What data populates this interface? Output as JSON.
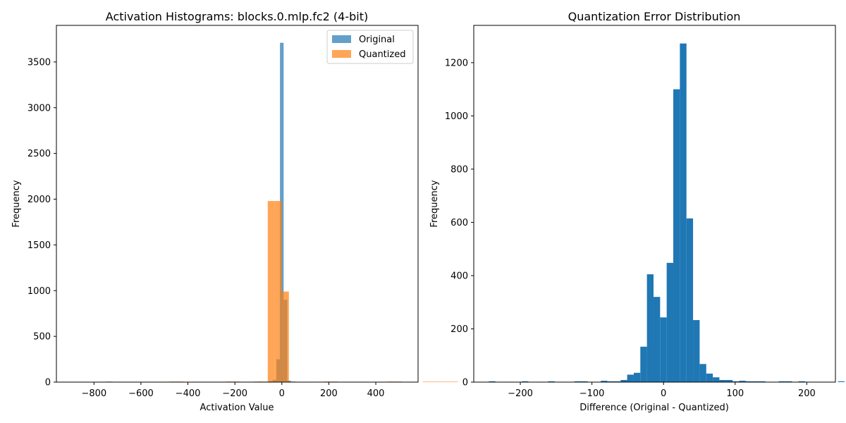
{
  "chart_data": [
    {
      "type": "bar",
      "title": "Activation Histograms: blocks.0.mlp.fc2 (4-bit)",
      "xlabel": "Activation Value",
      "ylabel": "Frequency",
      "xlim": [
        -960,
        580
      ],
      "ylim": [
        0,
        3900
      ],
      "xticks": [
        -800,
        -600,
        -400,
        -200,
        0,
        200,
        400
      ],
      "xtick_labels": [
        "−800",
        "−600",
        "−400",
        "−200",
        "0",
        "200",
        "400"
      ],
      "yticks": [
        0,
        500,
        1000,
        1500,
        2000,
        2500,
        3000,
        3500
      ],
      "ytick_labels": [
        "0",
        "500",
        "1000",
        "1500",
        "2000",
        "2500",
        "3000",
        "3500"
      ],
      "grid": false,
      "legend": "upper-right",
      "series": [
        {
          "name": "Original",
          "color": "#1f77b4",
          "opacity": 0.7,
          "bin_start": -256,
          "bin_width": 15.5,
          "counts": [
            2,
            0,
            0,
            0,
            3,
            0,
            4,
            2,
            4,
            3,
            5,
            4,
            5,
            10,
            25,
            250,
            3710,
            900,
            15,
            5,
            3,
            2,
            2,
            0,
            0,
            3,
            4,
            2,
            2,
            3,
            4,
            2,
            0,
            2,
            3,
            0,
            0,
            0
          ]
        },
        {
          "name": "Quantized",
          "color": "#ff7f0e",
          "opacity": 0.7,
          "bin_start": -750,
          "bin_width": 30,
          "counts": [
            6,
            0,
            0,
            0,
            0,
            0,
            0,
            0,
            0,
            6,
            6,
            0,
            0,
            0,
            0,
            0,
            0,
            6,
            6,
            0,
            0,
            6,
            6,
            1980,
            1980,
            990,
            6,
            0,
            0,
            0,
            0,
            6,
            6,
            0,
            0,
            0,
            0,
            0,
            0,
            0,
            6,
            6,
            0,
            0,
            0,
            6,
            6,
            6,
            6,
            6
          ]
        }
      ]
    },
    {
      "type": "bar",
      "title": "Quantization Error Distribution",
      "xlabel": "Difference (Original - Quantized)",
      "ylabel": "Frequency",
      "xlim": [
        -265,
        240
      ],
      "ylim": [
        0,
        1340
      ],
      "xticks": [
        -200,
        -100,
        0,
        100,
        200
      ],
      "xtick_labels": [
        "−200",
        "−100",
        "0",
        "100",
        "200"
      ],
      "yticks": [
        0,
        200,
        400,
        600,
        800,
        1000,
        1200
      ],
      "ytick_labels": [
        "0",
        "200",
        "400",
        "600",
        "800",
        "1000",
        "1200"
      ],
      "grid": false,
      "series": [
        {
          "color": "#1f77b4",
          "opacity": 1,
          "bin_start": -244,
          "bin_width": 9.2,
          "counts": [
            3,
            0,
            0,
            0,
            0,
            3,
            0,
            0,
            0,
            3,
            0,
            0,
            0,
            3,
            3,
            0,
            0,
            5,
            3,
            3,
            8,
            28,
            35,
            133,
            405,
            320,
            243,
            448,
            1100,
            1272,
            615,
            233,
            68,
            32,
            18,
            8,
            8,
            3,
            5,
            3,
            3,
            3,
            0,
            0,
            3,
            3,
            0,
            3,
            0,
            0,
            0,
            0,
            0,
            3
          ]
        }
      ]
    }
  ]
}
